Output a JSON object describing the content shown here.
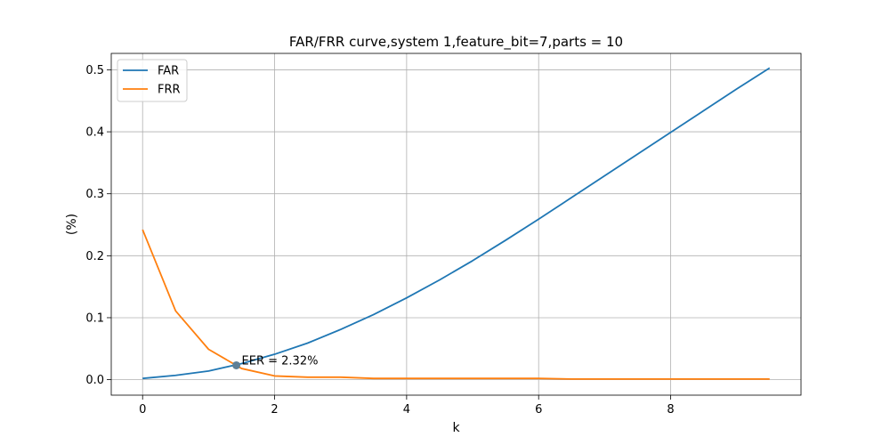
{
  "chart_data": {
    "type": "line",
    "title": "FAR/FRR curve,system 1,feature_bit=7,parts = 10",
    "xlabel": "k",
    "ylabel": "(%)",
    "xlim": [
      -0.475,
      9.975
    ],
    "ylim": [
      -0.025,
      0.5265
    ],
    "grid": true,
    "legend": "top-left",
    "x_ticks": [
      0,
      2,
      4,
      6,
      8
    ],
    "x_tick_labels": [
      "0",
      "2",
      "4",
      "6",
      "8"
    ],
    "y_ticks": [
      0.0,
      0.1,
      0.2,
      0.3,
      0.4,
      0.5
    ],
    "y_tick_labels": [
      "0.0",
      "0.1",
      "0.2",
      "0.3",
      "0.4",
      "0.5"
    ],
    "x": [
      0,
      0.5,
      1,
      1.5,
      2,
      2.5,
      3,
      3.5,
      4,
      4.5,
      5,
      5.5,
      6,
      6.5,
      7,
      7.5,
      8,
      8.5,
      9,
      9.5
    ],
    "series": [
      {
        "name": "FAR",
        "color": "#1f77b4",
        "values": [
          0.002,
          0.007,
          0.014,
          0.026,
          0.041,
          0.059,
          0.081,
          0.105,
          0.132,
          0.161,
          0.192,
          0.225,
          0.259,
          0.294,
          0.329,
          0.364,
          0.399,
          0.434,
          0.469,
          0.503
        ]
      },
      {
        "name": "FRR",
        "color": "#ff7f0e",
        "values": [
          0.242,
          0.111,
          0.049,
          0.018,
          0.006,
          0.004,
          0.004,
          0.002,
          0.002,
          0.002,
          0.002,
          0.002,
          0.002,
          0.001,
          0.001,
          0.001,
          0.001,
          0.001,
          0.001,
          0.001
        ]
      }
    ],
    "eer_point": {
      "x": 1.42,
      "y": 0.0232,
      "label": "EER = 2.32%",
      "color": "#5f7f96"
    }
  }
}
